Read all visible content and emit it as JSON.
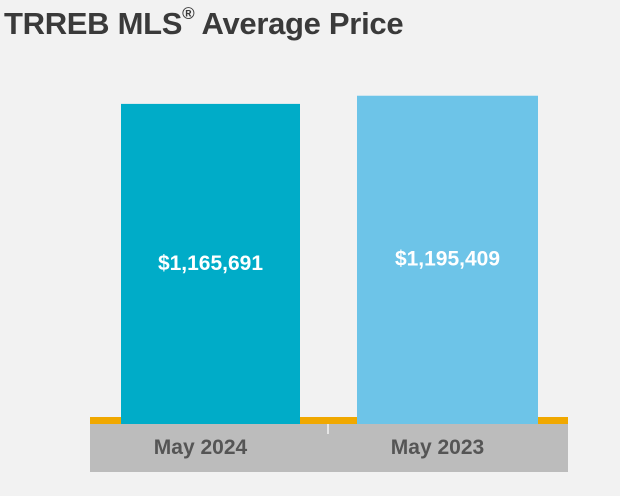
{
  "title": {
    "main": "TRREB MLS",
    "reg": "®",
    "rest": " Average Price"
  },
  "colors": {
    "background": "#f2f2f2",
    "bar_2024": "#00acc8",
    "bar_2023": "#6dc4e8",
    "baseline": "#f0a800",
    "axis_band": "#bcbcbc",
    "label_text": "#555555",
    "title_text": "#3a3a3a"
  },
  "chart_data": {
    "type": "bar",
    "categories": [
      "May 2024",
      "May 2023"
    ],
    "values": [
      1165691,
      1195409
    ],
    "value_labels": [
      "$1,165,691",
      "$1,195,409"
    ],
    "ylim": [
      0,
      1260000
    ],
    "grid": false,
    "legend": "none"
  }
}
